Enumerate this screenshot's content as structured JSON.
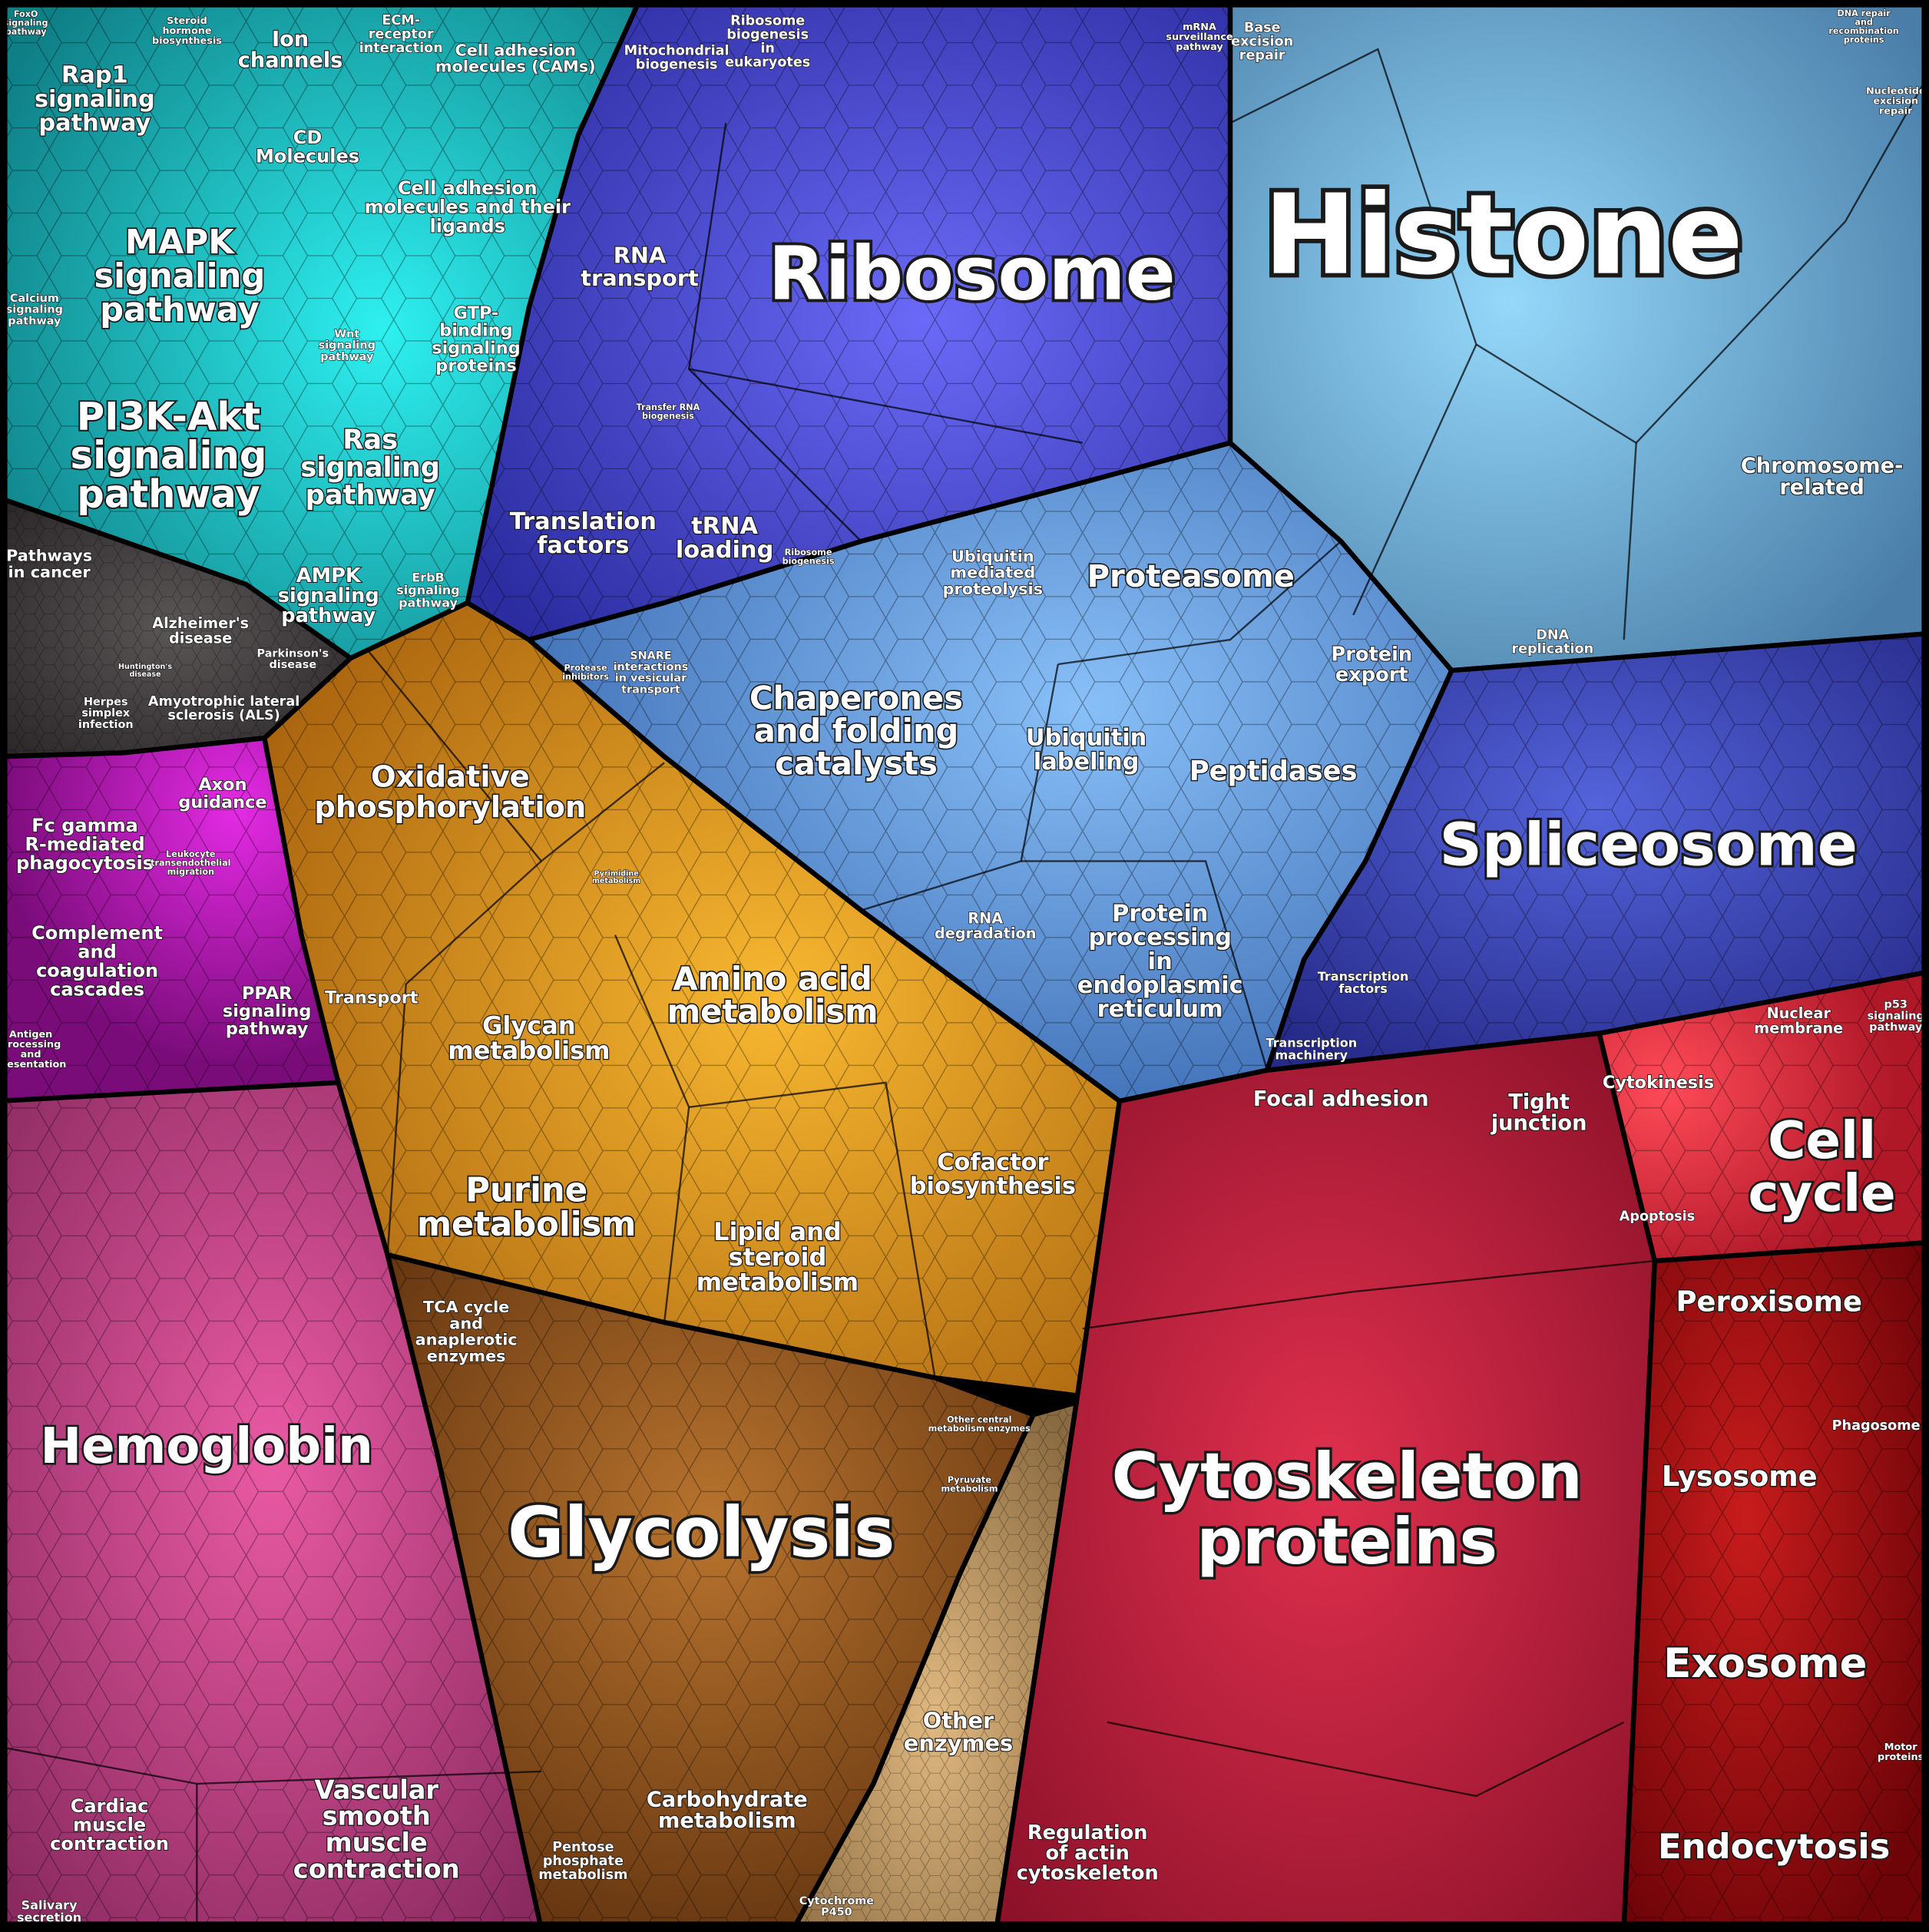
{
  "labels": [
    {
      "lines": [
        "Histone"
      ]
    },
    {
      "lines": [
        "Ribosome"
      ]
    },
    {
      "lines": [
        "Cytoskeleton",
        "proteins"
      ]
    },
    {
      "lines": [
        "Glycolysis"
      ]
    },
    {
      "lines": [
        "Hemoglobin"
      ]
    },
    {
      "lines": [
        "Spliceosome"
      ]
    },
    {
      "lines": [
        "Chaperones",
        "and folding",
        "catalysts"
      ]
    },
    {
      "lines": [
        "Proteasome"
      ]
    },
    {
      "lines": [
        "Peptidases"
      ]
    },
    {
      "lines": [
        "Ubiquitin",
        "labeling"
      ]
    },
    {
      "lines": [
        "Ubiquitin",
        "mediated",
        "proteolysis"
      ]
    },
    {
      "lines": [
        "Protein",
        "export"
      ]
    },
    {
      "lines": [
        "Protein",
        "processing",
        "in",
        "endoplasmic",
        "reticulum"
      ]
    },
    {
      "lines": [
        "RNA",
        "degradation"
      ]
    },
    {
      "lines": [
        "Chromosome-",
        "related"
      ]
    },
    {
      "lines": [
        "Base",
        "excision",
        "repair"
      ]
    },
    {
      "lines": [
        "mRNA",
        "surveillance",
        "pathway"
      ]
    },
    {
      "lines": [
        "Oxidative",
        "phosphorylation"
      ]
    },
    {
      "lines": [
        "Amino acid",
        "metabolism"
      ]
    },
    {
      "lines": [
        "Glycan",
        "metabolism"
      ]
    },
    {
      "lines": [
        "Purine",
        "metabolism"
      ]
    },
    {
      "lines": [
        "Lipid and",
        "steroid",
        "metabolism"
      ]
    },
    {
      "lines": [
        "Cofactor",
        "biosynthesis"
      ]
    },
    {
      "lines": [
        "TCA cycle",
        "and",
        "anaplerotic",
        "enzymes"
      ]
    },
    {
      "lines": [
        "Transport"
      ]
    },
    {
      "lines": [
        "Carbohydrate",
        "metabolism"
      ]
    },
    {
      "lines": [
        "Pentose",
        "phosphate",
        "metabolism"
      ]
    },
    {
      "lines": [
        "Other",
        "enzymes"
      ]
    },
    {
      "lines": [
        "Cytochrome",
        "P450"
      ]
    },
    {
      "lines": [
        "Pyruvate",
        "metabolism"
      ]
    },
    {
      "lines": [
        "Other central",
        "metabolism enzymes"
      ]
    },
    {
      "lines": [
        "Vascular",
        "smooth",
        "muscle",
        "contraction"
      ]
    },
    {
      "lines": [
        "Cardiac",
        "muscle",
        "contraction"
      ]
    },
    {
      "lines": [
        "Salivary",
        "secretion"
      ]
    },
    {
      "lines": [
        "Fc gamma",
        "R-mediated",
        "phagocytosis"
      ]
    },
    {
      "lines": [
        "Complement",
        "and",
        "coagulation",
        "cascades"
      ]
    },
    {
      "lines": [
        "Axon",
        "guidance"
      ]
    },
    {
      "lines": [
        "PPAR",
        "signaling",
        "pathway"
      ]
    },
    {
      "lines": [
        "Antigen",
        "processing",
        "and",
        "presentation"
      ]
    },
    {
      "lines": [
        "Leukocyte",
        "transendothelial",
        "migration"
      ]
    },
    {
      "lines": [
        "Pathways",
        "in cancer"
      ]
    },
    {
      "lines": [
        "Alzheimer's",
        "disease"
      ]
    },
    {
      "lines": [
        "Parkinson's",
        "disease"
      ]
    },
    {
      "lines": [
        "Huntington's",
        "disease"
      ]
    },
    {
      "lines": [
        "Amyotrophic lateral",
        "sclerosis (ALS)"
      ]
    },
    {
      "lines": [
        "Herpes",
        "simplex",
        "infection"
      ]
    },
    {
      "lines": [
        "PI3K-Akt",
        "signaling",
        "pathway"
      ]
    },
    {
      "lines": [
        "MAPK",
        "signaling",
        "pathway"
      ]
    },
    {
      "lines": [
        "Rap1",
        "signaling",
        "pathway"
      ]
    },
    {
      "lines": [
        "Ion",
        "channels"
      ]
    },
    {
      "lines": [
        "CD",
        "Molecules"
      ]
    },
    {
      "lines": [
        "Cell adhesion",
        "molecules (CAMs)"
      ]
    },
    {
      "lines": [
        "Cell adhesion",
        "molecules and their",
        "ligands"
      ]
    },
    {
      "lines": [
        "GTP-",
        "binding",
        "signaling",
        "proteins"
      ]
    },
    {
      "lines": [
        "Ras",
        "signaling",
        "pathway"
      ]
    },
    {
      "lines": [
        "AMPK",
        "signaling",
        "pathway"
      ]
    },
    {
      "lines": [
        "ErbB",
        "signaling",
        "pathway"
      ]
    },
    {
      "lines": [
        "Wnt",
        "signaling",
        "pathway"
      ]
    },
    {
      "lines": [
        "ECM-",
        "receptor",
        "interaction"
      ]
    },
    {
      "lines": [
        "Calcium",
        "signaling",
        "pathway"
      ]
    },
    {
      "lines": [
        "Mitochondrial",
        "biogenesis"
      ]
    },
    {
      "lines": [
        "Ribosome",
        "biogenesis",
        "in",
        "eukaryotes"
      ]
    },
    {
      "lines": [
        "RNA",
        "transport"
      ]
    },
    {
      "lines": [
        "Translation",
        "factors"
      ]
    },
    {
      "lines": [
        "tRNA",
        "loading"
      ]
    },
    {
      "lines": [
        "Transfer RNA",
        "biogenesis"
      ]
    },
    {
      "lines": [
        "Ribosome",
        "biogenesis"
      ]
    },
    {
      "lines": [
        "SNARE",
        "interactions",
        "in vesicular",
        "transport"
      ]
    },
    {
      "lines": [
        "Protease",
        "inhibitors"
      ]
    },
    {
      "lines": [
        "Transcription",
        "factors"
      ]
    },
    {
      "lines": [
        "Transcription",
        "machinery"
      ]
    },
    {
      "lines": [
        "DNA",
        "replication"
      ]
    },
    {
      "lines": [
        "Focal adhesion"
      ]
    },
    {
      "lines": [
        "Tight",
        "junction"
      ]
    },
    {
      "lines": [
        "Cytokinesis"
      ]
    },
    {
      "lines": [
        "Nuclear",
        "membrane"
      ]
    },
    {
      "lines": [
        "p53",
        "signaling",
        "pathway"
      ]
    },
    {
      "lines": [
        "Cell",
        "cycle"
      ]
    },
    {
      "lines": [
        "Apoptosis"
      ]
    },
    {
      "lines": [
        "Peroxisome"
      ]
    },
    {
      "lines": [
        "Lysosome"
      ]
    },
    {
      "lines": [
        "Phagosome"
      ]
    },
    {
      "lines": [
        "Exosome"
      ]
    },
    {
      "lines": [
        "Endocytosis"
      ]
    },
    {
      "lines": [
        "Motor",
        "proteins"
      ]
    },
    {
      "lines": [
        "Regulation",
        "of actin",
        "cytoskeleton"
      ]
    },
    {
      "lines": [
        "Steroid",
        "hormone",
        "biosynthesis"
      ]
    },
    {
      "lines": [
        "FoxO",
        "signaling",
        "pathway"
      ]
    },
    {
      "lines": [
        "DNA repair",
        "and",
        "recombination",
        "proteins"
      ]
    },
    {
      "lines": [
        "Nucleotide",
        "excision",
        "repair"
      ]
    },
    {
      "lines": [
        "Pyrimidine",
        "metabolism"
      ]
    }
  ]
}
